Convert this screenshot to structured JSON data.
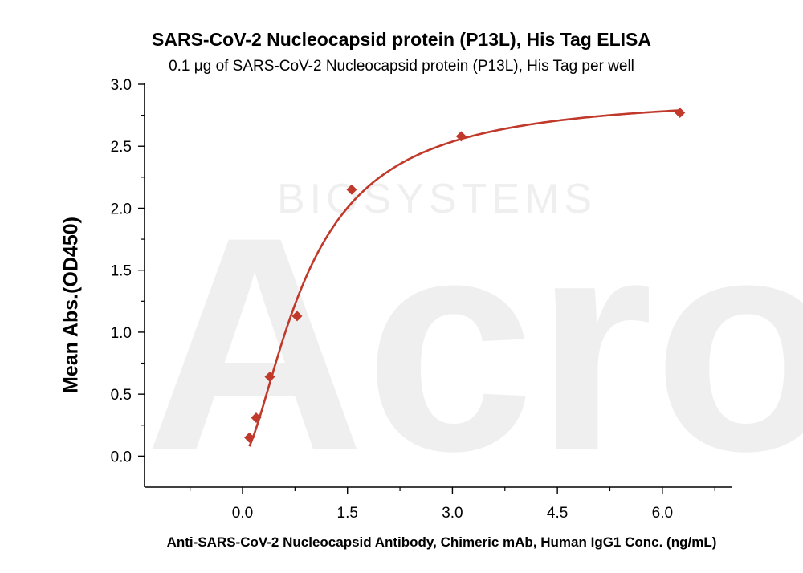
{
  "chart_data": {
    "type": "scatter",
    "title": "SARS-CoV-2 Nucleocapsid protein (P13L), His Tag ELISA",
    "subtitle": "0.1 μg of SARS-CoV-2 Nucleocapsid protein (P13L), His Tag per well",
    "xlabel": "Anti-SARS-CoV-2 Nucleocapsid Antibody, Chimeric mAb, Human IgG1 Conc. (ng/mL)",
    "ylabel": "Mean Abs.(OD450)",
    "xlim": [
      -1.4,
      7.0
    ],
    "ylim": [
      -0.25,
      3.0
    ],
    "xticks": [
      0.0,
      1.5,
      3.0,
      4.5,
      6.0
    ],
    "xtick_labels": [
      "0.0",
      "1.5",
      "3.0",
      "4.5",
      "6.0"
    ],
    "yticks": [
      0.0,
      0.5,
      1.0,
      1.5,
      2.0,
      2.5,
      3.0
    ],
    "ytick_labels": [
      "0.0",
      "0.5",
      "1.0",
      "1.5",
      "2.0",
      "2.5",
      "3.0"
    ],
    "grid": false,
    "watermark": {
      "logo": "Acro",
      "text": "BIOSYSTEMS"
    },
    "series": [
      {
        "marker": "diamond",
        "color": "#c0392b",
        "x": [
          0.098,
          0.195,
          0.39,
          0.78,
          1.56,
          3.125,
          6.25
        ],
        "y": [
          0.15,
          0.31,
          0.64,
          1.13,
          2.15,
          2.58,
          2.77
        ],
        "fit": {
          "type": "4PL",
          "bottom": 0.0,
          "top": 2.92,
          "ec50": 0.92,
          "hill": 1.6,
          "color": "#c0392b"
        }
      }
    ]
  }
}
